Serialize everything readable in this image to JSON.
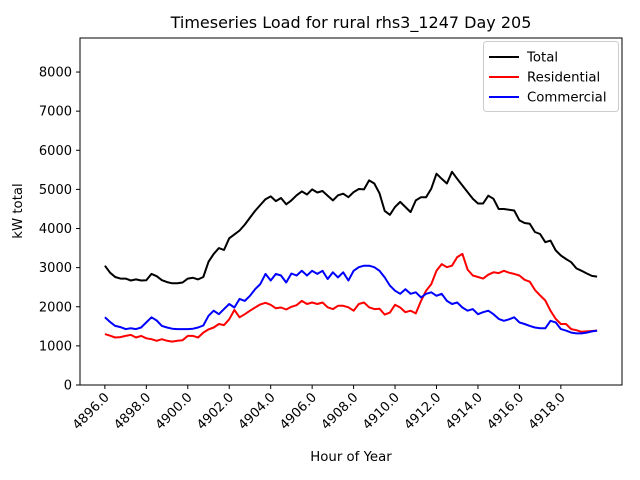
{
  "chart_data": {
    "type": "line",
    "title": "Timeseries Load for rural rhs3_1247  Day 205",
    "xlabel": "Hour of Year",
    "ylabel": "kW total",
    "xlim": [
      4894.8,
      4920.95
    ],
    "ylim": [
      0,
      8870
    ],
    "grid": false,
    "legend_position": "upper right",
    "xticks": [
      4896,
      4898,
      4900,
      4902,
      4904,
      4906,
      4908,
      4910,
      4912,
      4914,
      4916,
      4918
    ],
    "xtick_labels": [
      "4896.0",
      "4898.0",
      "4900.0",
      "4902.0",
      "4904.0",
      "4906.0",
      "4908.0",
      "4910.0",
      "4912.0",
      "4914.0",
      "4916.0",
      "4918.0"
    ],
    "yticks": [
      0,
      1000,
      2000,
      3000,
      4000,
      5000,
      6000,
      7000,
      8000
    ],
    "ytick_labels": [
      "0",
      "1000",
      "2000",
      "3000",
      "4000",
      "5000",
      "6000",
      "7000",
      "8000"
    ],
    "x_start": 4896.0,
    "x_step": 0.25,
    "series": [
      {
        "name": "Total",
        "color": "#000000",
        "values": [
          3050,
          2870,
          2760,
          2720,
          2720,
          2670,
          2700,
          2670,
          2680,
          2840,
          2780,
          2680,
          2630,
          2600,
          2600,
          2620,
          2720,
          2740,
          2700,
          2760,
          3150,
          3350,
          3500,
          3450,
          3750,
          3850,
          3950,
          4100,
          4280,
          4450,
          4600,
          4750,
          4820,
          4700,
          4780,
          4620,
          4720,
          4850,
          4950,
          4870,
          5000,
          4920,
          4960,
          4840,
          4720,
          4850,
          4890,
          4800,
          4930,
          5010,
          5000,
          5230,
          5150,
          4900,
          4450,
          4350,
          4550,
          4680,
          4550,
          4420,
          4720,
          4800,
          4800,
          5020,
          5400,
          5270,
          5150,
          5450,
          5270,
          5100,
          4930,
          4760,
          4640,
          4640,
          4840,
          4760,
          4500,
          4500,
          4480,
          4460,
          4210,
          4140,
          4120,
          3910,
          3860,
          3650,
          3690,
          3440,
          3310,
          3220,
          3140,
          2980,
          2920,
          2850,
          2790,
          2770
        ]
      },
      {
        "name": "Residential",
        "color": "#ff0000",
        "values": [
          1300,
          1260,
          1215,
          1225,
          1255,
          1280,
          1215,
          1255,
          1195,
          1170,
          1130,
          1170,
          1130,
          1110,
          1130,
          1145,
          1255,
          1255,
          1215,
          1340,
          1420,
          1470,
          1560,
          1530,
          1680,
          1920,
          1730,
          1810,
          1900,
          1980,
          2060,
          2100,
          2050,
          1960,
          1980,
          1930,
          2000,
          2040,
          2150,
          2070,
          2110,
          2070,
          2110,
          1985,
          1940,
          2025,
          2025,
          1985,
          1900,
          2070,
          2110,
          1985,
          1940,
          1950,
          1800,
          1850,
          2050,
          1980,
          1860,
          1900,
          1830,
          2150,
          2410,
          2580,
          2920,
          3090,
          3010,
          3050,
          3270,
          3350,
          2950,
          2800,
          2760,
          2720,
          2820,
          2880,
          2860,
          2920,
          2870,
          2840,
          2800,
          2690,
          2640,
          2430,
          2290,
          2160,
          1900,
          1690,
          1560,
          1560,
          1430,
          1400,
          1360,
          1370,
          1380,
          1390
        ]
      },
      {
        "name": "Commercial",
        "color": "#0000ff",
        "values": [
          1730,
          1610,
          1510,
          1480,
          1430,
          1450,
          1430,
          1470,
          1600,
          1730,
          1650,
          1510,
          1470,
          1440,
          1430,
          1430,
          1430,
          1440,
          1470,
          1520,
          1770,
          1900,
          1810,
          1940,
          2070,
          1980,
          2200,
          2150,
          2280,
          2450,
          2580,
          2840,
          2670,
          2840,
          2800,
          2620,
          2850,
          2800,
          2920,
          2800,
          2920,
          2840,
          2920,
          2710,
          2880,
          2750,
          2880,
          2670,
          2920,
          3010,
          3050,
          3050,
          3010,
          2920,
          2750,
          2540,
          2410,
          2330,
          2450,
          2330,
          2370,
          2240,
          2330,
          2370,
          2280,
          2330,
          2150,
          2070,
          2110,
          1980,
          1900,
          1940,
          1810,
          1860,
          1900,
          1810,
          1690,
          1640,
          1680,
          1730,
          1600,
          1560,
          1510,
          1470,
          1450,
          1450,
          1640,
          1600,
          1430,
          1390,
          1340,
          1320,
          1320,
          1340,
          1370,
          1390
        ]
      }
    ]
  }
}
